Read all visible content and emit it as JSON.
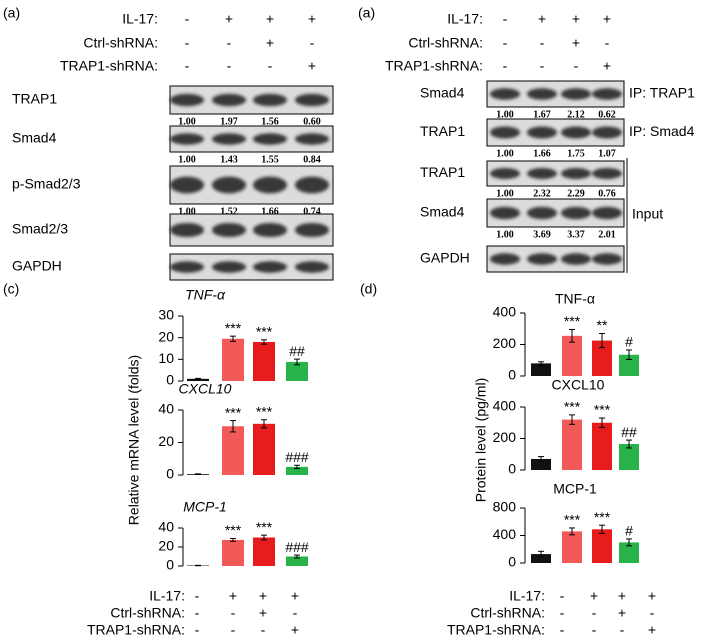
{
  "blot_left": {
    "panel_label": "(a)",
    "conditions": [
      {
        "label": "IL-17:",
        "signs": [
          "-",
          "+",
          "+",
          "+"
        ]
      },
      {
        "label": "Ctrl-shRNA:",
        "signs": [
          "-",
          "-",
          "+",
          "-"
        ]
      },
      {
        "label": "TRAP1-shRNA:",
        "signs": [
          "-",
          "-",
          "-",
          "+"
        ]
      }
    ],
    "rows": [
      {
        "label": "TRAP1",
        "quant": [
          "1.00",
          "1.97",
          "1.56",
          "0.60"
        ]
      },
      {
        "label": "Smad4",
        "quant": [
          "1.00",
          "1.43",
          "1.55",
          "0.84"
        ]
      },
      {
        "label": "p-Smad2/3",
        "quant": [
          "1.00",
          "1.52",
          "1.66",
          "0.74"
        ]
      },
      {
        "label": "Smad2/3"
      },
      {
        "label": "GAPDH"
      }
    ]
  },
  "blot_right": {
    "panel_label": "(a)",
    "conditions": [
      {
        "label": "IL-17:",
        "signs": [
          "-",
          "+",
          "+",
          "+"
        ]
      },
      {
        "label": "Ctrl-shRNA:",
        "signs": [
          "-",
          "-",
          "+",
          "-"
        ]
      },
      {
        "label": "TRAP1-shRNA:",
        "signs": [
          "-",
          "-",
          "-",
          "+"
        ]
      }
    ],
    "rows": [
      {
        "label": "Smad4",
        "quant": [
          "1.00",
          "1.67",
          "2.12",
          "0.62"
        ],
        "tag": "IP: TRAP1"
      },
      {
        "label": "TRAP1",
        "quant": [
          "1.00",
          "1.66",
          "1.75",
          "1.07"
        ],
        "tag": "IP: Smad4"
      },
      {
        "label": "TRAP1",
        "quant": [
          "1.00",
          "2.32",
          "2.29",
          "0.76"
        ]
      },
      {
        "label": "Smad4",
        "quant": [
          "1.00",
          "3.69",
          "3.37",
          "2.01"
        ]
      },
      {
        "label": "GAPDH"
      }
    ],
    "group_label": "Input"
  },
  "panel_c": {
    "panel_label": "(c)",
    "y_label": "Relative mRNA level (folds)",
    "conditions": [
      {
        "label": "IL-17:",
        "signs": [
          "-",
          "+",
          "+",
          "+"
        ]
      },
      {
        "label": "Ctrl-shRNA:",
        "signs": [
          "-",
          "-",
          "+",
          "-"
        ]
      },
      {
        "label": "TRAP1-shRNA:",
        "signs": [
          "-",
          "-",
          "-",
          "+"
        ]
      }
    ]
  },
  "panel_d": {
    "panel_label": "(d)",
    "y_label": "Protein level (pg/ml)",
    "conditions": [
      {
        "label": "IL-17:",
        "signs": [
          "-",
          "+",
          "+",
          "+"
        ]
      },
      {
        "label": "Ctrl-shRNA:",
        "signs": [
          "-",
          "-",
          "+",
          "-"
        ]
      },
      {
        "label": "TRAP1-shRNA:",
        "signs": [
          "-",
          "-",
          "-",
          "+"
        ]
      }
    ]
  },
  "chart_data": [
    {
      "type": "bar",
      "title": "TNF-α",
      "italic_title": true,
      "values": [
        1,
        19.5,
        18,
        8.8
      ],
      "errors": [
        0.2,
        1.2,
        1,
        1.3
      ],
      "colors": [
        "#111111",
        "#f25a5a",
        "#e81c1c",
        "#27b24a"
      ],
      "ylim": [
        0,
        30
      ],
      "yticks": [
        0,
        10,
        20,
        30
      ],
      "annotations": [
        null,
        "***",
        "***",
        "##"
      ]
    },
    {
      "type": "bar",
      "title": "CXCL10",
      "italic_title": true,
      "values": [
        0.5,
        30,
        31.5,
        5
      ],
      "errors": [
        0.2,
        3.5,
        2.5,
        1
      ],
      "colors": [
        "#111111",
        "#f25a5a",
        "#e81c1c",
        "#27b24a"
      ],
      "ylim": [
        0,
        40
      ],
      "yticks": [
        0,
        20,
        40
      ],
      "annotations": [
        null,
        "***",
        "***",
        "###"
      ]
    },
    {
      "type": "bar",
      "title": "MCP-1",
      "italic_title": true,
      "values": [
        0.5,
        27.5,
        30,
        10
      ],
      "errors": [
        0.2,
        1.5,
        2.5,
        1.5
      ],
      "colors": [
        "#111111",
        "#f25a5a",
        "#e81c1c",
        "#27b24a"
      ],
      "ylim": [
        0,
        40
      ],
      "yticks": [
        0,
        20,
        40
      ],
      "annotations": [
        null,
        "***",
        "***",
        "###"
      ]
    },
    {
      "type": "bar",
      "title": "TNF-α",
      "italic_title": false,
      "values": [
        80,
        255,
        225,
        135
      ],
      "errors": [
        10,
        40,
        45,
        30
      ],
      "colors": [
        "#111111",
        "#f25a5a",
        "#e81c1c",
        "#27b24a"
      ],
      "ylim": [
        0,
        400
      ],
      "yticks": [
        0,
        200,
        400
      ],
      "annotations": [
        null,
        "***",
        "**",
        "#"
      ]
    },
    {
      "type": "bar",
      "title": "CXCL10",
      "italic_title": false,
      "values": [
        70,
        320,
        300,
        165
      ],
      "errors": [
        15,
        30,
        30,
        25
      ],
      "colors": [
        "#111111",
        "#f25a5a",
        "#e81c1c",
        "#27b24a"
      ],
      "ylim": [
        0,
        400
      ],
      "yticks": [
        0,
        200,
        400
      ],
      "annotations": [
        null,
        "***",
        "***",
        "##"
      ]
    },
    {
      "type": "bar",
      "title": "MCP-1",
      "italic_title": false,
      "values": [
        130,
        460,
        490,
        300
      ],
      "errors": [
        40,
        50,
        60,
        50
      ],
      "colors": [
        "#111111",
        "#f25a5a",
        "#e81c1c",
        "#27b24a"
      ],
      "ylim": [
        0,
        800
      ],
      "yticks": [
        0,
        400,
        800
      ],
      "annotations": [
        null,
        "***",
        "***",
        "#"
      ]
    }
  ]
}
